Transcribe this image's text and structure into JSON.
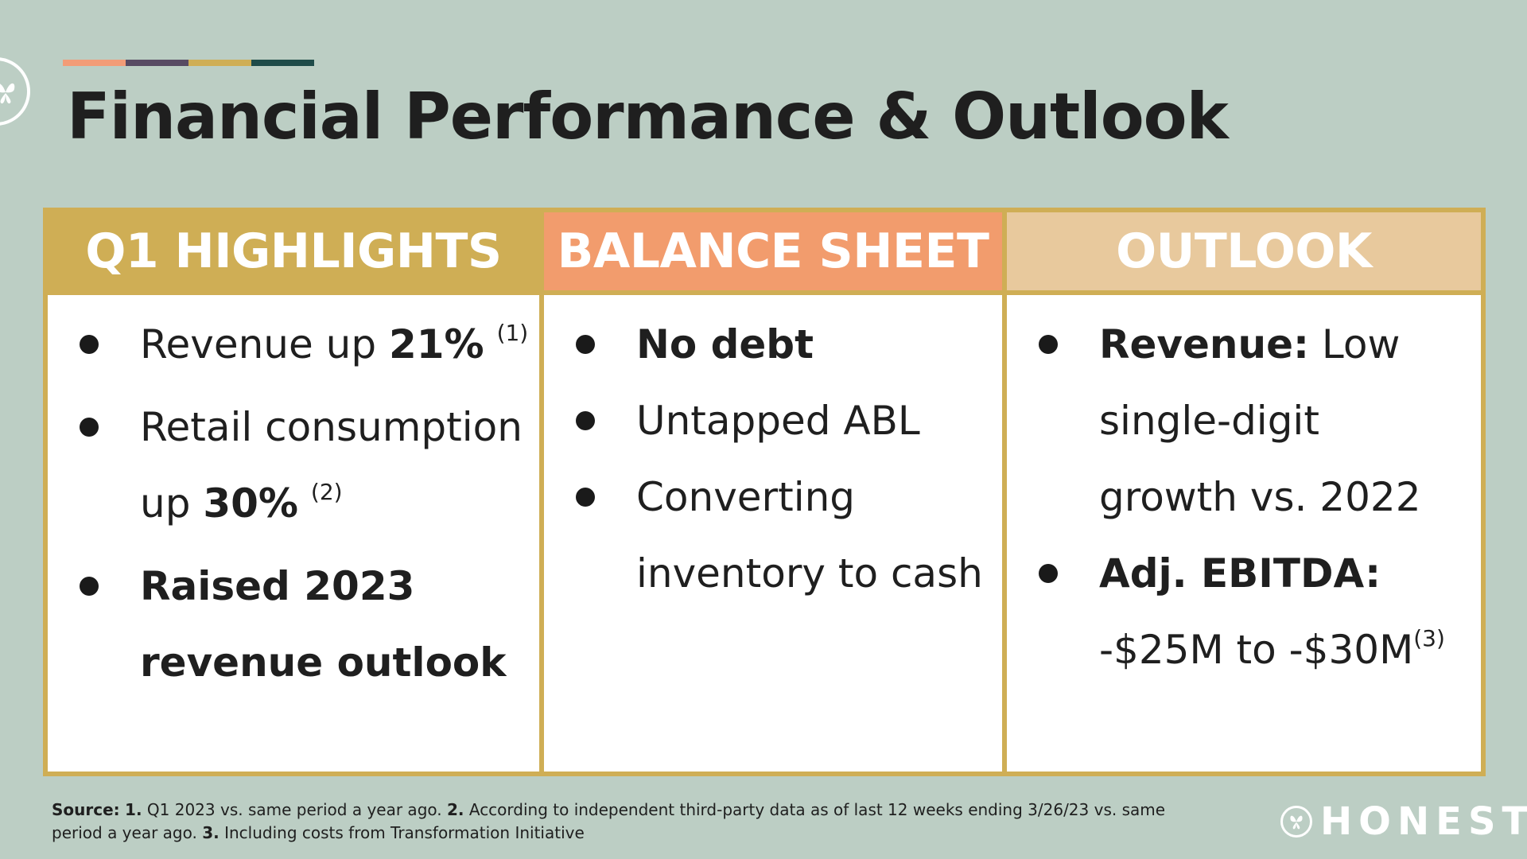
{
  "colors": {
    "background": "#bccec4",
    "gold": "#cfae55",
    "salmon": "#f29c6d",
    "sand": "#e8c99d",
    "plum": "#584b63",
    "teal": "#1f4b49"
  },
  "header": {
    "title": "Financial Performance & Outlook",
    "logo_icon": "butterfly-icon"
  },
  "columns": [
    {
      "heading": "Q1 HIGHLIGHTS",
      "bullets": [
        {
          "pre": "Revenue up ",
          "bold": "21%",
          "post": " ",
          "sup": "(1)"
        },
        {
          "pre": "Retail consumption",
          "line2_pre": "up ",
          "bold": "30%",
          "post": " ",
          "sup": "(2)"
        },
        {
          "bold_line1": "Raised 2023",
          "bold_line2": "revenue outlook"
        }
      ]
    },
    {
      "heading": "BALANCE SHEET",
      "bullets": [
        {
          "bold": "No debt"
        },
        {
          "text": "Untapped ABL"
        },
        {
          "line1": "Converting",
          "line2": "inventory to cash"
        }
      ]
    },
    {
      "heading": "OUTLOOK",
      "bullets": [
        {
          "bold": "Revenue:",
          "post": " Low",
          "line2": "single-digit",
          "line3": "growth vs. 2022"
        },
        {
          "bold": "Adj. EBITDA:",
          "line2": "-$25M to -$30M",
          "sup": "(3)"
        }
      ]
    }
  ],
  "footnote": {
    "source_label": "Source:",
    "n1": "1.",
    "t1": " Q1 2023 vs. same period a year ago.  ",
    "n2": "2.",
    "t2": "  According to independent third-party data as of last 12 weeks ending 3/26/23 vs. same period a year ago.  ",
    "n3": "3.",
    "t3": "  Including costs from Transformation Initiative"
  },
  "brand": {
    "name": "HONEST",
    "icon": "butterfly-icon"
  }
}
